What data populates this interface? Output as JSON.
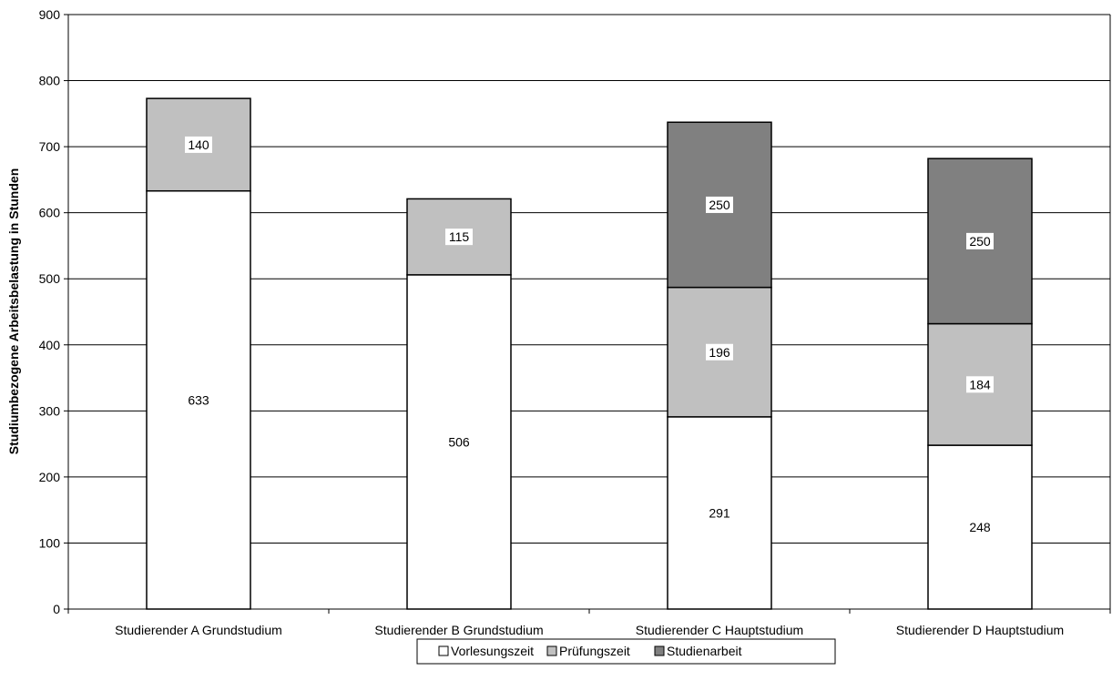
{
  "chart_data": {
    "type": "bar",
    "stacked": true,
    "categories": [
      "Studierender A Grundstudium",
      "Studierender B Grundstudium",
      "Studierender C Hauptstudium",
      "Studierender D Hauptstudium"
    ],
    "series": [
      {
        "name": "Vorlesungszeit",
        "values": [
          633,
          506,
          291,
          248
        ],
        "color": "#ffffff"
      },
      {
        "name": "Prüfungszeit",
        "values": [
          140,
          115,
          196,
          184
        ],
        "color": "#c0c0c0"
      },
      {
        "name": "Studienarbeit",
        "values": [
          null,
          null,
          250,
          250
        ],
        "color": "#808080"
      }
    ],
    "xlabel": "",
    "ylabel": "Studiumbezogene Arbeitsbelastung in Stunden",
    "ylim": [
      0,
      900
    ],
    "yticks": [
      0,
      100,
      200,
      300,
      400,
      500,
      600,
      700,
      800,
      900
    ],
    "grid": true,
    "legend_position": "bottom-center",
    "data_labels": true
  }
}
